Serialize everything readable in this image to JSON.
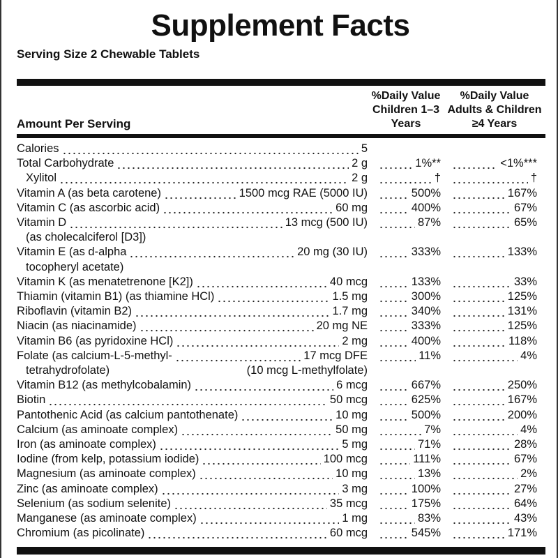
{
  "title": "Supplement Facts",
  "serving_size": "Serving Size 2 Chewable Tablets",
  "header": {
    "amount": "Amount Per Serving",
    "children": [
      "%Daily Value",
      "Children 1–3",
      "Years"
    ],
    "adults": [
      "%Daily Value",
      "Adults & Children",
      "≥4 Years"
    ]
  },
  "rows": [
    {
      "name": "Calories",
      "amount": "5"
    },
    {
      "name": "Total Carbohydrate",
      "amount": "2 g",
      "dv_children": "1%**",
      "dv_adults": "<1%***"
    },
    {
      "name": "Xylitol",
      "amount": "2 g",
      "dv_children": "†",
      "dv_adults": "†",
      "indent": true
    },
    {
      "name": "Vitamin A (as beta carotene)",
      "amount": "1500 mcg RAE (5000 IU)",
      "dv_children": "500%",
      "dv_adults": "167%"
    },
    {
      "name": "Vitamin C (as ascorbic acid)",
      "amount": "60 mg",
      "dv_children": "400%",
      "dv_adults": "67%"
    },
    {
      "name": "Vitamin D",
      "name2": "(as cholecalciferol [D3])",
      "amount": "13 mcg (500 IU)",
      "dv_children": "87%",
      "dv_adults": "65%"
    },
    {
      "name": "Vitamin E (as d-alpha",
      "name2": "tocopheryl acetate)",
      "amount": "20 mg (30 IU)",
      "dv_children": "333%",
      "dv_adults": "133%"
    },
    {
      "name": "Vitamin K (as menatetrenone [K2])",
      "amount": "40 mcg",
      "dv_children": "133%",
      "dv_adults": "33%"
    },
    {
      "name": "Thiamin (vitamin B1) (as thiamine HCl)",
      "amount": "1.5 mg",
      "dv_children": "300%",
      "dv_adults": "125%"
    },
    {
      "name": "Riboflavin (vitamin B2)",
      "amount": "1.7 mg",
      "dv_children": "340%",
      "dv_adults": "131%"
    },
    {
      "name": "Niacin (as niacinamide)",
      "amount": "20 mg NE",
      "dv_children": "333%",
      "dv_adults": "125%"
    },
    {
      "name": "Vitamin B6 (as pyridoxine HCl)",
      "amount": "2 mg",
      "dv_children": "400%",
      "dv_adults": "118%"
    },
    {
      "name": "Folate (as calcium-L-5-methyl-",
      "name2": "tetrahydrofolate)",
      "amount": "17 mcg DFE",
      "amount2": "(10 mcg L-methylfolate)",
      "dv_children": "11%",
      "dv_adults": "4%"
    },
    {
      "name": "Vitamin B12 (as methylcobalamin)",
      "amount": "6 mcg",
      "dv_children": "667%",
      "dv_adults": "250%"
    },
    {
      "name": "Biotin",
      "amount": "50 mcg",
      "dv_children": "625%",
      "dv_adults": "167%"
    },
    {
      "name": "Pantothenic Acid (as calcium pantothenate)",
      "amount": "10 mg",
      "dv_children": "500%",
      "dv_adults": "200%"
    },
    {
      "name": "Calcium (as aminoate complex)",
      "amount": "50 mg",
      "dv_children": "7%",
      "dv_adults": "4%"
    },
    {
      "name": "Iron (as aminoate complex)",
      "amount": "5 mg",
      "dv_children": "71%",
      "dv_adults": "28%"
    },
    {
      "name": "Iodine (from kelp, potassium iodide)",
      "amount": "100 mcg",
      "dv_children": "111%",
      "dv_adults": "67%"
    },
    {
      "name": "Magnesium (as aminoate complex)",
      "amount": "10 mg",
      "dv_children": "13%",
      "dv_adults": "2%"
    },
    {
      "name": "Zinc (as aminoate complex)",
      "amount": "3 mg",
      "dv_children": "100%",
      "dv_adults": "27%"
    },
    {
      "name": "Selenium (as sodium selenite)",
      "amount": "35 mcg",
      "dv_children": "175%",
      "dv_adults": "64%"
    },
    {
      "name": "Manganese (as aminoate complex)",
      "amount": "1 mg",
      "dv_children": "83%",
      "dv_adults": "43%"
    },
    {
      "name": "Chromium (as picolinate)",
      "amount": "60 mcg",
      "dv_children": "545%",
      "dv_adults": "171%"
    }
  ]
}
